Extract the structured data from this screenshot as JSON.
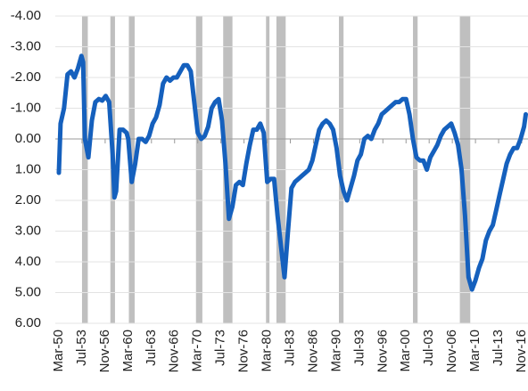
{
  "chart_data": {
    "type": "line",
    "x": [
      "Mar-50",
      "Jun-50",
      "Dec-50",
      "Jun-51",
      "Dec-51",
      "Jun-52",
      "Dec-52",
      "Jun-53",
      "Sep-53",
      "Dec-53",
      "Jun-54",
      "Dec-54",
      "Jun-55",
      "Dec-55",
      "Jun-56",
      "Dec-56",
      "Jun-57",
      "Dec-57",
      "Mar-58",
      "Jun-58",
      "Dec-58",
      "Jun-59",
      "Dec-59",
      "Mar-60",
      "Sep-60",
      "Mar-61",
      "Sep-61",
      "Mar-62",
      "Sep-62",
      "Mar-63",
      "Sep-63",
      "Mar-64",
      "Sep-64",
      "Mar-65",
      "Sep-65",
      "Mar-66",
      "Sep-66",
      "Mar-67",
      "Sep-67",
      "Mar-68",
      "Sep-68",
      "Mar-69",
      "Sep-69",
      "Mar-70",
      "Sep-70",
      "Mar-71",
      "Sep-71",
      "Mar-72",
      "Sep-72",
      "Mar-73",
      "Sep-73",
      "Mar-74",
      "Sep-74",
      "Mar-75",
      "Sep-75",
      "Mar-76",
      "Sep-76",
      "Mar-77",
      "Sep-77",
      "Mar-78",
      "Sep-78",
      "Mar-79",
      "Sep-79",
      "Mar-80",
      "Sep-80",
      "Mar-81",
      "Sep-81",
      "Mar-82",
      "Sep-82",
      "Mar-83",
      "Sep-83",
      "Mar-84",
      "Sep-84",
      "Mar-85",
      "Sep-85",
      "Mar-86",
      "Sep-86",
      "Mar-87",
      "Sep-87",
      "Mar-88",
      "Sep-88",
      "Mar-89",
      "Sep-89",
      "Mar-90",
      "Sep-90",
      "Mar-91",
      "Sep-91",
      "Mar-92",
      "Sep-92",
      "Mar-93",
      "Sep-93",
      "Mar-94",
      "Sep-94",
      "Mar-95",
      "Sep-95",
      "Mar-96",
      "Sep-96",
      "Mar-97",
      "Sep-97",
      "Mar-98",
      "Sep-98",
      "Mar-99",
      "Sep-99",
      "Mar-00",
      "Sep-00",
      "Mar-01",
      "Sep-01",
      "Mar-02",
      "Sep-02",
      "Mar-03",
      "Sep-03",
      "Mar-04",
      "Sep-04",
      "Mar-05",
      "Sep-05",
      "Mar-06",
      "Sep-06",
      "Mar-07",
      "Sep-07",
      "Mar-08",
      "Sep-08",
      "Mar-09",
      "Sep-09",
      "Mar-10",
      "Sep-10",
      "Mar-11",
      "Sep-11",
      "Mar-12",
      "Sep-12",
      "Mar-13",
      "Sep-13",
      "Mar-14",
      "Sep-14",
      "Mar-15",
      "Sep-15",
      "Mar-16",
      "Sep-16",
      "Mar-17",
      "Jun-17"
    ],
    "values": [
      1.1,
      -0.5,
      -1.0,
      -2.1,
      -2.2,
      -2.0,
      -2.3,
      -2.7,
      -2.5,
      0.0,
      0.6,
      -0.6,
      -1.2,
      -1.3,
      -1.25,
      -1.4,
      -1.2,
      0.5,
      1.9,
      1.7,
      -0.3,
      -0.3,
      -0.2,
      0.0,
      1.4,
      0.8,
      0.0,
      0.0,
      0.1,
      -0.1,
      -0.5,
      -0.7,
      -1.1,
      -1.8,
      -2.0,
      -1.9,
      -2.0,
      -2.0,
      -2.2,
      -2.4,
      -2.4,
      -2.2,
      -1.2,
      -0.2,
      0.0,
      -0.1,
      -0.4,
      -1.0,
      -1.2,
      -1.3,
      -0.6,
      0.8,
      2.6,
      2.2,
      1.5,
      1.4,
      1.5,
      0.8,
      0.2,
      -0.3,
      -0.3,
      -0.5,
      -0.2,
      1.4,
      1.3,
      1.3,
      2.5,
      3.5,
      4.5,
      3.0,
      1.6,
      1.4,
      1.3,
      1.2,
      1.1,
      1.0,
      0.7,
      0.2,
      -0.3,
      -0.5,
      -0.6,
      -0.5,
      -0.3,
      0.3,
      1.2,
      1.7,
      2.0,
      1.6,
      1.2,
      0.7,
      0.5,
      0.0,
      -0.1,
      0.0,
      -0.3,
      -0.5,
      -0.8,
      -0.9,
      -1.0,
      -1.1,
      -1.2,
      -1.2,
      -1.3,
      -1.3,
      -0.8,
      0.0,
      0.6,
      0.7,
      0.7,
      1.0,
      0.6,
      0.4,
      0.2,
      -0.1,
      -0.3,
      -0.4,
      -0.5,
      -0.2,
      0.2,
      1.0,
      2.5,
      4.5,
      4.9,
      4.6,
      4.2,
      3.9,
      3.3,
      3.0,
      2.8,
      2.3,
      1.8,
      1.3,
      0.8,
      0.5,
      0.3,
      0.3,
      0.0,
      -0.4,
      -0.8
    ],
    "color": "#1560bd",
    "xticks": [
      "Mar-50",
      "Jul-53",
      "Nov-56",
      "Mar-60",
      "Jul-63",
      "Nov-66",
      "Mar-70",
      "Jul-73",
      "Nov-76",
      "Mar-80",
      "Jul-83",
      "Nov-86",
      "Mar-90",
      "Jul-93",
      "Nov-96",
      "Mar-00",
      "Jul-03",
      "Nov-06",
      "Mar-10",
      "Jul-13",
      "Nov-16"
    ],
    "ylim": [
      -4,
      6
    ],
    "y_inverted": true,
    "yticks": [
      {
        "value": -4,
        "label": "-4.00"
      },
      {
        "value": -3,
        "label": "-3.00"
      },
      {
        "value": -2,
        "label": "-2.00"
      },
      {
        "value": -1,
        "label": "-1.00"
      },
      {
        "value": 0,
        "label": "0.00"
      },
      {
        "value": 1,
        "label": "1.00"
      },
      {
        "value": 2,
        "label": "2.00"
      },
      {
        "value": 3,
        "label": "3.00"
      },
      {
        "value": 4,
        "label": "4.00"
      },
      {
        "value": 5,
        "label": "5.00"
      },
      {
        "value": 6,
        "label": "6.00"
      }
    ],
    "grid": true,
    "shaded_periods": [
      [
        "Jul-53",
        "May-54"
      ],
      [
        "Aug-57",
        "Apr-58"
      ],
      [
        "Apr-60",
        "Feb-61"
      ],
      [
        "Dec-69",
        "Nov-70"
      ],
      [
        "Nov-73",
        "Mar-75"
      ],
      [
        "Jan-80",
        "Jul-80"
      ],
      [
        "Jul-81",
        "Nov-82"
      ],
      [
        "Jul-90",
        "Mar-91"
      ],
      [
        "Mar-01",
        "Nov-01"
      ],
      [
        "Dec-07",
        "Jun-09"
      ]
    ],
    "shade_color": "#bfbfbf"
  }
}
